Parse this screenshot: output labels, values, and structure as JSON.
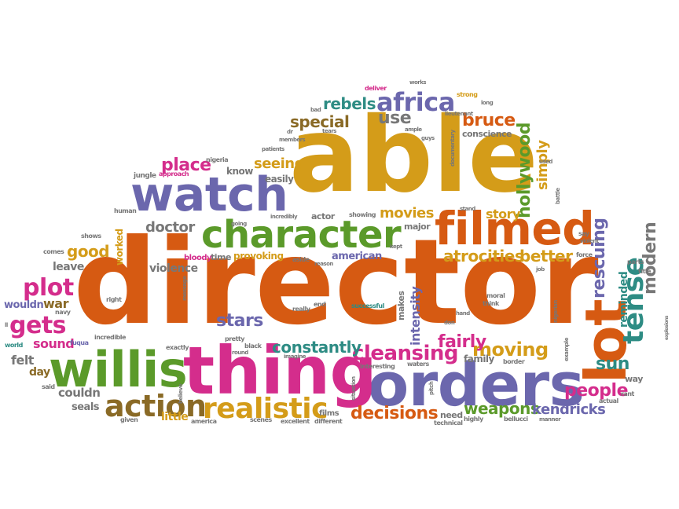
{
  "colors": {
    "orange": "#d65a12",
    "purple": "#6b67ad",
    "green": "#5b9a2a",
    "magenta": "#d42d8c",
    "gold": "#d49c19",
    "teal": "#2e8c84",
    "brown": "#8a6a26",
    "gray": "#777777"
  },
  "words": [
    {
      "text": "director",
      "color": "orange"
    },
    {
      "text": "able",
      "color": "gold"
    },
    {
      "text": "orders",
      "color": "purple"
    },
    {
      "text": "thing",
      "color": "magenta"
    },
    {
      "text": "willis",
      "color": "green"
    },
    {
      "text": "watch",
      "color": "purple"
    },
    {
      "text": "character",
      "color": "green"
    },
    {
      "text": "filmed",
      "color": "orange"
    },
    {
      "text": "lot",
      "color": "orange"
    },
    {
      "text": "realistic",
      "color": "gold"
    },
    {
      "text": "action",
      "color": "brown"
    },
    {
      "text": "africa",
      "color": "purple"
    },
    {
      "text": "tense",
      "color": "teal"
    },
    {
      "text": "plot",
      "color": "magenta"
    },
    {
      "text": "gets",
      "color": "magenta"
    },
    {
      "text": "cleansing",
      "color": "magenta"
    },
    {
      "text": "moving",
      "color": "gold"
    },
    {
      "text": "decisions",
      "color": "orange"
    },
    {
      "text": "people",
      "color": "magenta"
    },
    {
      "text": "rebels",
      "color": "teal"
    },
    {
      "text": "bruce",
      "color": "orange"
    },
    {
      "text": "hollywood",
      "color": "green"
    },
    {
      "text": "modern",
      "color": "gray"
    },
    {
      "text": "rescuing",
      "color": "purple"
    },
    {
      "text": "special",
      "color": "brown"
    },
    {
      "text": "use",
      "color": "gray"
    },
    {
      "text": "place",
      "color": "magenta"
    },
    {
      "text": "weapons",
      "color": "green"
    },
    {
      "text": "kendricks",
      "color": "purple"
    },
    {
      "text": "stars",
      "color": "purple"
    },
    {
      "text": "constantly",
      "color": "teal"
    },
    {
      "text": "sun",
      "color": "teal"
    },
    {
      "text": "fairly",
      "color": "magenta"
    },
    {
      "text": "atrocities",
      "color": "gold"
    },
    {
      "text": "better",
      "color": "gold"
    },
    {
      "text": "movies",
      "color": "gold"
    },
    {
      "text": "story",
      "color": "gold"
    },
    {
      "text": "simply",
      "color": "gold"
    },
    {
      "text": "doctor",
      "color": "gray"
    },
    {
      "text": "good",
      "color": "gold"
    },
    {
      "text": "seeing",
      "color": "gold"
    },
    {
      "text": "intensity",
      "color": "purple"
    },
    {
      "text": "reminded",
      "color": "teal"
    },
    {
      "text": "sound",
      "color": "magenta"
    },
    {
      "text": "war",
      "color": "brown"
    },
    {
      "text": "felt",
      "color": "gray"
    },
    {
      "text": "day",
      "color": "brown"
    },
    {
      "text": "couldn",
      "color": "gray"
    },
    {
      "text": "seals",
      "color": "gray"
    },
    {
      "text": "little",
      "color": "gold"
    },
    {
      "text": "leave",
      "color": "gray"
    },
    {
      "text": "violence",
      "color": "gray"
    },
    {
      "text": "know",
      "color": "gray"
    },
    {
      "text": "easily",
      "color": "gray"
    },
    {
      "text": "worked",
      "color": "gold"
    },
    {
      "text": "wouldn",
      "color": "purple"
    },
    {
      "text": "american",
      "color": "purple"
    },
    {
      "text": "family",
      "color": "gray"
    },
    {
      "text": "provoking",
      "color": "gold"
    },
    {
      "text": "time",
      "color": "gray"
    },
    {
      "text": "major",
      "color": "gray"
    },
    {
      "text": "conscience",
      "color": "gray"
    },
    {
      "text": "makes",
      "color": "gray"
    },
    {
      "text": "actor",
      "color": "gray"
    },
    {
      "text": "films",
      "color": "gray"
    },
    {
      "text": "need",
      "color": "gray"
    },
    {
      "text": "way",
      "color": "gray"
    },
    {
      "text": "nigeria",
      "color": "gray"
    },
    {
      "text": "jungle",
      "color": "gray"
    },
    {
      "text": "approach",
      "color": "magenta"
    },
    {
      "text": "human",
      "color": "gray"
    },
    {
      "text": "shows",
      "color": "gray"
    },
    {
      "text": "comes",
      "color": "gray"
    },
    {
      "text": "bloody",
      "color": "magenta"
    },
    {
      "text": "message",
      "color": "gray"
    },
    {
      "text": "right",
      "color": "gray"
    },
    {
      "text": "navy",
      "color": "gray"
    },
    {
      "text": "incredible",
      "color": "gray"
    },
    {
      "text": "world",
      "color": "teal"
    },
    {
      "text": "fuqua",
      "color": "purple"
    },
    {
      "text": "said",
      "color": "gray"
    },
    {
      "text": "given",
      "color": "gray"
    },
    {
      "text": "believe",
      "color": "gray"
    },
    {
      "text": "america",
      "color": "gray"
    },
    {
      "text": "scenes",
      "color": "gray"
    },
    {
      "text": "excellent",
      "color": "gray"
    },
    {
      "text": "different",
      "color": "gray"
    },
    {
      "text": "technical",
      "color": "gray"
    },
    {
      "text": "highly",
      "color": "gray"
    },
    {
      "text": "bellucci",
      "color": "gray"
    },
    {
      "text": "manner",
      "color": "gray"
    },
    {
      "text": "actual",
      "color": "gray"
    },
    {
      "text": "rant",
      "color": "gray"
    },
    {
      "text": "border",
      "color": "gray"
    },
    {
      "text": "waters",
      "color": "gray"
    },
    {
      "text": "interesting",
      "color": "gray"
    },
    {
      "text": "situation",
      "color": "gray"
    },
    {
      "text": "pitch",
      "color": "gray"
    },
    {
      "text": "exactly",
      "color": "gray"
    },
    {
      "text": "pretty",
      "color": "gray"
    },
    {
      "text": "black",
      "color": "gray"
    },
    {
      "text": "round",
      "color": "gray"
    },
    {
      "text": "imagine",
      "color": "gray"
    },
    {
      "text": "successful",
      "color": "teal"
    },
    {
      "text": "really",
      "color": "gray"
    },
    {
      "text": "end",
      "color": "gray"
    },
    {
      "text": "don",
      "color": "gray"
    },
    {
      "text": "hand",
      "color": "gray"
    },
    {
      "text": "moral",
      "color": "gray"
    },
    {
      "text": "think",
      "color": "gray"
    },
    {
      "text": "nigerian",
      "color": "gray"
    },
    {
      "text": "example",
      "color": "gray"
    },
    {
      "text": "explosions",
      "color": "gray"
    },
    {
      "text": "title",
      "color": "gray"
    },
    {
      "text": "parts",
      "color": "gray"
    },
    {
      "text": "force",
      "color": "gray"
    },
    {
      "text": "say",
      "color": "gray"
    },
    {
      "text": "violent",
      "color": "gray"
    },
    {
      "text": "job",
      "color": "gray"
    },
    {
      "text": "aside",
      "color": "gray"
    },
    {
      "text": "reason",
      "color": "gray"
    },
    {
      "text": "kept",
      "color": "gray"
    },
    {
      "text": "showing",
      "color": "gray"
    },
    {
      "text": "incredibly",
      "color": "gray"
    },
    {
      "text": "going",
      "color": "gray"
    },
    {
      "text": "stand",
      "color": "gray"
    },
    {
      "text": "used",
      "color": "gray"
    },
    {
      "text": "battle",
      "color": "gray"
    },
    {
      "text": "documentary",
      "color": "gray"
    },
    {
      "text": "guys",
      "color": "gray"
    },
    {
      "text": "ample",
      "color": "gray"
    },
    {
      "text": "tears",
      "color": "gray"
    },
    {
      "text": "members",
      "color": "gray"
    },
    {
      "text": "patients",
      "color": "gray"
    },
    {
      "text": "dr",
      "color": "gray"
    },
    {
      "text": "bad",
      "color": "gray"
    },
    {
      "text": "deliver",
      "color": "magenta"
    },
    {
      "text": "works",
      "color": "gray"
    },
    {
      "text": "strong",
      "color": "gold"
    },
    {
      "text": "long",
      "color": "gray"
    },
    {
      "text": "lieutenant",
      "color": "gray"
    },
    {
      "text": "ll",
      "color": "gray"
    }
  ]
}
